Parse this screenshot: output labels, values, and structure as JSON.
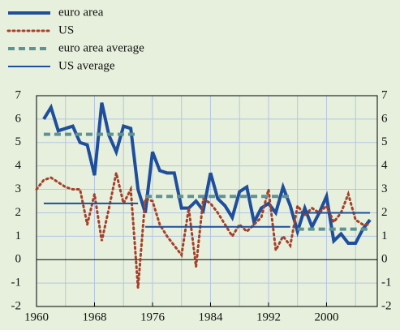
{
  "chart_data": {
    "type": "line",
    "xlim": [
      1960,
      2007
    ],
    "xticks": [
      1960,
      1968,
      1976,
      1984,
      1992,
      2000
    ],
    "xgrid": [
      1960,
      1964,
      1968,
      1972,
      1976,
      1980,
      1984,
      1988,
      1992,
      1996,
      2000,
      2004
    ],
    "ylim": [
      -2,
      7
    ],
    "yticks": [
      -2,
      -1,
      0,
      1,
      2,
      3,
      4,
      5,
      6,
      7
    ],
    "grid": true,
    "series": [
      {
        "name": "euro area",
        "color": "#1f4e9c",
        "line_style": "solid",
        "line_width": 4,
        "x": [
          1961,
          1962,
          1963,
          1964,
          1965,
          1966,
          1967,
          1968,
          1969,
          1970,
          1971,
          1972,
          1973,
          1974,
          1975,
          1976,
          1977,
          1978,
          1979,
          1980,
          1981,
          1982,
          1983,
          1984,
          1985,
          1986,
          1987,
          1988,
          1989,
          1990,
          1991,
          1992,
          1993,
          1994,
          1995,
          1996,
          1997,
          1998,
          1999,
          2000,
          2001,
          2002,
          2003,
          2004,
          2005,
          2006
        ],
        "values": [
          6.0,
          6.5,
          5.5,
          5.6,
          5.7,
          5.0,
          4.9,
          3.6,
          6.7,
          5.3,
          4.6,
          5.7,
          5.6,
          3.0,
          2.0,
          4.6,
          3.8,
          3.7,
          3.7,
          2.2,
          2.2,
          2.5,
          2.1,
          3.7,
          2.6,
          2.3,
          1.8,
          2.9,
          3.1,
          1.6,
          2.2,
          2.4,
          2.0,
          3.1,
          2.3,
          1.2,
          2.2,
          1.4,
          2.0,
          2.7,
          0.8,
          1.1,
          0.7,
          0.7,
          1.3,
          1.7
        ]
      },
      {
        "name": "US",
        "color": "#a5402a",
        "line_style": "dotted",
        "line_width": 3,
        "x": [
          1960,
          1961,
          1962,
          1963,
          1964,
          1965,
          1966,
          1967,
          1968,
          1969,
          1970,
          1971,
          1972,
          1973,
          1974,
          1975,
          1976,
          1977,
          1978,
          1979,
          1980,
          1981,
          1982,
          1983,
          1984,
          1985,
          1986,
          1987,
          1988,
          1989,
          1990,
          1991,
          1992,
          1993,
          1994,
          1995,
          1996,
          1997,
          1998,
          1999,
          2000,
          2001,
          2002,
          2003,
          2004,
          2005,
          2006
        ],
        "values": [
          3.0,
          3.4,
          3.5,
          3.3,
          3.1,
          3.0,
          3.0,
          1.5,
          2.8,
          0.8,
          2.2,
          3.7,
          2.4,
          3.0,
          -1.2,
          2.6,
          2.5,
          1.5,
          1.0,
          0.6,
          0.2,
          2.2,
          -0.3,
          2.6,
          2.4,
          2.0,
          1.5,
          1.0,
          1.5,
          1.2,
          1.5,
          1.8,
          3.0,
          0.4,
          1.0,
          0.6,
          2.3,
          1.9,
          2.2,
          2.0,
          2.3,
          1.6,
          2.0,
          2.8,
          1.7,
          1.5,
          1.5
        ]
      },
      {
        "name": "euro area average",
        "color": "#5f9393",
        "line_style": "dashed",
        "line_width": 4,
        "segments": [
          {
            "x": [
              1961,
              1974
            ],
            "values": [
              5.35,
              5.35
            ]
          },
          {
            "x": [
              1975,
              1995
            ],
            "values": [
              2.7,
              2.7
            ]
          },
          {
            "x": [
              1996,
              2006
            ],
            "values": [
              1.3,
              1.3
            ]
          }
        ]
      },
      {
        "name": "US average",
        "color": "#1f4e9c",
        "line_style": "solid",
        "line_width": 2,
        "segments": [
          {
            "x": [
              1961,
              1974
            ],
            "values": [
              2.4,
              2.4
            ]
          },
          {
            "x": [
              1975,
              1995
            ],
            "values": [
              1.4,
              1.4
            ]
          },
          {
            "x": [
              1996,
              2006
            ],
            "values": [
              2.0,
              2.0
            ]
          }
        ]
      }
    ]
  }
}
